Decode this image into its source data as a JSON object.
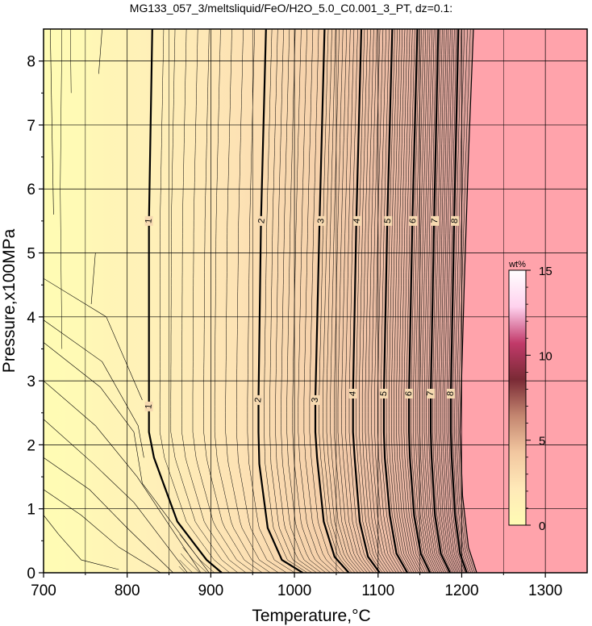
{
  "chart_data": {
    "type": "contour",
    "title": "MG133_057_3/meltsliquid/FeO/H2O_5.0_C0.001_3_PT, dz=0.1:",
    "xlabel": "Temperature,°C",
    "ylabel": "Pressure,x100MPa",
    "xlim": [
      700,
      1350
    ],
    "ylim": [
      0,
      8.5
    ],
    "xticks": [
      "700",
      "800",
      "900",
      "1000",
      "1100",
      "1200",
      "1300"
    ],
    "yticks": [
      "0",
      "1",
      "2",
      "3",
      "4",
      "5",
      "6",
      "7",
      "8"
    ],
    "grid": true,
    "contour_interval": 0.1,
    "liquidus_region_color": "#ffa3ab",
    "colorbar": {
      "unit": "wt%",
      "range": [
        0,
        15
      ],
      "ticks": [
        "0",
        "5",
        "10",
        "15"
      ],
      "colors": [
        "#fffcb4",
        "#ffe9b8",
        "#f2c7a0",
        "#c48670",
        "#7a2a35",
        "#c23a6a",
        "#ffd2ee",
        "#ffffff"
      ]
    },
    "major_contours": [
      {
        "level": "1",
        "points": [
          [
            913,
            0
          ],
          [
            895,
            0.2
          ],
          [
            860,
            0.8
          ],
          [
            832,
            1.8
          ],
          [
            826,
            2.2
          ],
          [
            826,
            2.6
          ],
          [
            826,
            5.5
          ],
          [
            830,
            8.5
          ]
        ],
        "labels": [
          [
            826,
            2.6
          ],
          [
            826,
            5.5
          ]
        ]
      },
      {
        "level": "2",
        "points": [
          [
            1010,
            0
          ],
          [
            985,
            0.2
          ],
          [
            968,
            0.7
          ],
          [
            958,
            1.7
          ],
          [
            957,
            2.2
          ],
          [
            957,
            2.7
          ],
          [
            960,
            5.5
          ],
          [
            966,
            8.5
          ]
        ],
        "labels": [
          [
            957,
            2.7
          ],
          [
            961,
            5.5
          ]
        ]
      },
      {
        "level": "3",
        "points": [
          [
            1065,
            0
          ],
          [
            1048,
            0.25
          ],
          [
            1035,
            0.8
          ],
          [
            1027,
            1.8
          ],
          [
            1025,
            2.2
          ],
          [
            1025,
            2.7
          ],
          [
            1030,
            5.5
          ],
          [
            1036,
            8.5
          ]
        ],
        "labels": [
          [
            1025,
            2.7
          ],
          [
            1032,
            5.5
          ]
        ]
      },
      {
        "level": "4",
        "points": [
          [
            1102,
            0
          ],
          [
            1088,
            0.25
          ],
          [
            1078,
            0.8
          ],
          [
            1072,
            1.8
          ],
          [
            1070,
            2.2
          ],
          [
            1070,
            2.8
          ],
          [
            1074,
            5.5
          ],
          [
            1080,
            8.5
          ]
        ],
        "labels": [
          [
            1070,
            2.8
          ],
          [
            1075,
            5.5
          ]
        ]
      },
      {
        "level": "5",
        "points": [
          [
            1135,
            0
          ],
          [
            1122,
            0.3
          ],
          [
            1114,
            0.9
          ],
          [
            1108,
            1.8
          ],
          [
            1107,
            2.2
          ],
          [
            1107,
            2.8
          ],
          [
            1111,
            5.5
          ],
          [
            1117,
            8.5
          ]
        ],
        "labels": [
          [
            1107,
            2.8
          ],
          [
            1112,
            5.5
          ]
        ]
      },
      {
        "level": "6",
        "points": [
          [
            1162,
            0
          ],
          [
            1151,
            0.3
          ],
          [
            1143,
            0.9
          ],
          [
            1138,
            1.8
          ],
          [
            1137,
            2.2
          ],
          [
            1137,
            2.8
          ],
          [
            1141,
            5.5
          ],
          [
            1147,
            8.5
          ]
        ],
        "labels": [
          [
            1137,
            2.8
          ],
          [
            1142,
            5.5
          ]
        ]
      },
      {
        "level": "7",
        "points": [
          [
            1186,
            0
          ],
          [
            1175,
            0.3
          ],
          [
            1168,
            0.9
          ],
          [
            1164,
            1.8
          ],
          [
            1163,
            2.2
          ],
          [
            1163,
            2.8
          ],
          [
            1167,
            5.5
          ],
          [
            1172,
            8.5
          ]
        ],
        "labels": [
          [
            1163,
            2.8
          ],
          [
            1168,
            5.5
          ]
        ]
      },
      {
        "level": "8",
        "points": [
          [
            1206,
            0
          ],
          [
            1198,
            0.3
          ],
          [
            1192,
            0.9
          ],
          [
            1188,
            1.8
          ],
          [
            1187,
            2.2
          ],
          [
            1187,
            2.8
          ],
          [
            1191,
            5.5
          ],
          [
            1196,
            8.5
          ]
        ],
        "labels": [
          [
            1187,
            2.8
          ],
          [
            1192,
            5.5
          ]
        ]
      }
    ],
    "liquidus_boundary": [
      [
        1218,
        0
      ],
      [
        1208,
        0.4
      ],
      [
        1201,
        1.2
      ],
      [
        1198,
        2.2
      ],
      [
        1203,
        4.5
      ],
      [
        1208,
        6.5
      ],
      [
        1214,
        8.5
      ]
    ],
    "low_temperature_contours": [
      [
        [
          700,
          0.9
        ],
        [
          718,
          0.6
        ],
        [
          745,
          0.2
        ],
        [
          790,
          0.05
        ]
      ],
      [
        [
          700,
          1.3
        ],
        [
          745,
          0.9
        ],
        [
          790,
          0.4
        ],
        [
          840,
          0
        ]
      ],
      [
        [
          700,
          1.8
        ],
        [
          755,
          1.3
        ],
        [
          800,
          0.7
        ],
        [
          855,
          0
        ]
      ],
      [
        [
          700,
          2.4
        ],
        [
          760,
          1.7
        ],
        [
          808,
          1.1
        ],
        [
          872,
          0
        ]
      ],
      [
        [
          700,
          3.0
        ],
        [
          762,
          2.3
        ],
        [
          812,
          1.5
        ],
        [
          888,
          0
        ]
      ],
      [
        [
          700,
          3.6
        ],
        [
          768,
          2.9
        ],
        [
          808,
          2.2
        ],
        [
          818,
          1.4
        ],
        [
          898,
          0
        ]
      ],
      [
        [
          700,
          3.95
        ],
        [
          770,
          3.3
        ],
        [
          813,
          2.3
        ],
        [
          820,
          1.8
        ]
      ],
      [
        [
          700,
          4.6
        ],
        [
          775,
          4.0
        ],
        [
          818,
          2.7
        ]
      ],
      [
        [
          708,
          8.5
        ],
        [
          712,
          5.6
        ]
      ],
      [
        [
          762,
          5.0
        ],
        [
          757,
          4.2
        ]
      ],
      [
        [
          770,
          8.5
        ],
        [
          766,
          7.8
        ]
      ]
    ]
  }
}
